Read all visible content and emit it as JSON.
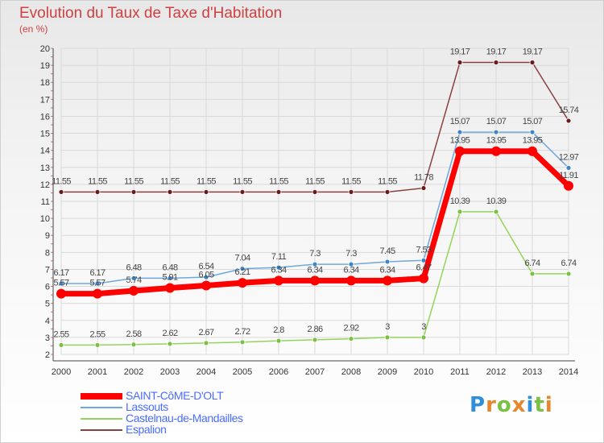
{
  "title": "Evolution du Taux de Taxe d'Habitation",
  "unit_label": "(en %)",
  "logo": "Proxiti",
  "colors": {
    "title": "#d04040",
    "legend_text": "#4a6cff",
    "grid": "#d9d9d9"
  },
  "chart_data": {
    "type": "line",
    "x": [
      "2000",
      "2001",
      "2002",
      "2003",
      "2004",
      "2005",
      "2006",
      "2007",
      "2008",
      "2009",
      "2010",
      "2011",
      "2012",
      "2013",
      "2014"
    ],
    "ylim": [
      2,
      20
    ],
    "yticks": [
      2,
      3,
      4,
      5,
      6,
      7,
      8,
      9,
      10,
      11,
      12,
      13,
      14,
      15,
      16,
      17,
      18,
      19,
      20
    ],
    "grid": true,
    "legend_position": "bottom-left",
    "series": [
      {
        "name": "SAINT-CôME-D'OLT",
        "color": "#ff0000",
        "marker": "#ff0000",
        "width": 7,
        "values": [
          5.57,
          5.57,
          5.74,
          5.91,
          6.05,
          6.21,
          6.34,
          6.34,
          6.34,
          6.34,
          6.47,
          13.95,
          13.95,
          13.95,
          11.91
        ],
        "labels": [
          "5.57",
          "5.57",
          "5.74",
          "5.91",
          "6.05",
          "6.21",
          "6.34",
          "6.34",
          "6.34",
          "6.34",
          "6.47",
          "13.95",
          "13.95",
          "13.95",
          "11.91"
        ]
      },
      {
        "name": "Lassouts",
        "color": "#6fa8dc",
        "marker": "#3d85c6",
        "width": 1.5,
        "values": [
          6.17,
          6.17,
          6.48,
          6.48,
          6.54,
          7.04,
          7.11,
          7.3,
          7.3,
          7.45,
          7.53,
          15.07,
          15.07,
          15.07,
          12.97
        ],
        "labels": [
          "6.17",
          "6.17",
          "6.48",
          "6.48",
          "6.54",
          "7.04",
          "7.11",
          "7.3",
          "7.3",
          "7.45",
          "7.53",
          "15.07",
          "15.07",
          "15.07",
          "12.97"
        ]
      },
      {
        "name": "Castelnau-de-Mandailles",
        "color": "#93d45a",
        "marker": "#7ac143",
        "width": 1.5,
        "values": [
          2.55,
          2.55,
          2.58,
          2.62,
          2.67,
          2.72,
          2.8,
          2.86,
          2.92,
          3,
          3,
          10.39,
          10.39,
          6.74,
          6.74
        ],
        "labels": [
          "2.55",
          "2.55",
          "2.58",
          "2.62",
          "2.67",
          "2.72",
          "2.8",
          "2.86",
          "2.92",
          "3",
          "3",
          "10.39",
          "10.39",
          "6.74",
          "6.74"
        ]
      },
      {
        "name": "Espalion",
        "color": "#8b4040",
        "marker": "#6b1a1a",
        "width": 1.5,
        "values": [
          11.55,
          11.55,
          11.55,
          11.55,
          11.55,
          11.55,
          11.55,
          11.55,
          11.55,
          11.55,
          11.78,
          19.17,
          19.17,
          19.17,
          15.74
        ],
        "labels": [
          "11.55",
          "11.55",
          "11.55",
          "11.55",
          "11.55",
          "11.55",
          "11.55",
          "11.55",
          "11.55",
          "11.55",
          "11.78",
          "19.17",
          "19.17",
          "19.17",
          "15.74"
        ]
      }
    ]
  }
}
